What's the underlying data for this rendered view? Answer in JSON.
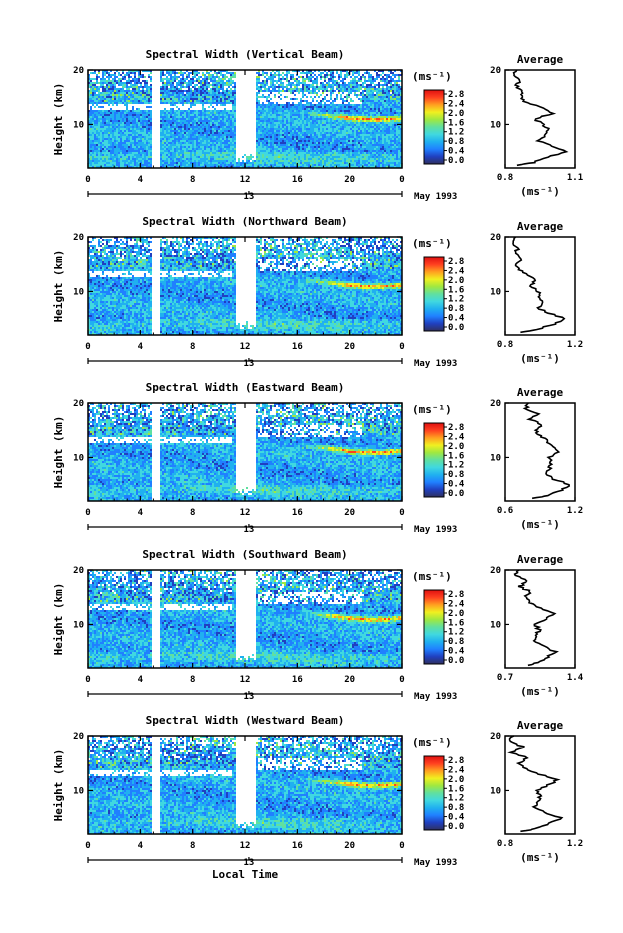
{
  "chart_data": [
    {
      "type": "heatmap",
      "title": "Spectral Width (Vertical Beam)",
      "xlabel": "",
      "ylabel": "Height (km)",
      "xlim": [
        0,
        24
      ],
      "ylim": [
        2,
        20
      ],
      "x_ticks": [
        "0",
        "4",
        "8",
        "12",
        "16",
        "20",
        "0"
      ],
      "y_ticks": [
        "10",
        "20"
      ],
      "date_label": "May 1993",
      "date_tick": "13",
      "colorbar": {
        "unit": "(ms⁻¹)",
        "ticks": [
          "0.0",
          "0.4",
          "0.8",
          "1.2",
          "1.6",
          "2.0",
          "2.4",
          "2.8"
        ]
      },
      "average_profile": {
        "title": "Average",
        "xlabel": "(ms⁻¹)",
        "x_ticks": [
          "0.8",
          "1.1"
        ],
        "xlim": [
          0.8,
          1.1
        ],
        "y_ticks": [
          "10",
          "20"
        ],
        "heights": [
          2.5,
          3,
          4,
          5,
          6,
          7,
          8,
          9,
          10,
          11,
          12,
          13,
          14,
          15,
          16,
          17,
          18,
          19,
          20
        ],
        "values": [
          0.86,
          0.92,
          0.98,
          1.06,
          1.0,
          0.94,
          0.97,
          0.99,
          0.96,
          0.93,
          1.0,
          0.97,
          0.89,
          0.87,
          0.88,
          0.85,
          0.86,
          0.84,
          0.85
        ]
      }
    },
    {
      "type": "heatmap",
      "title": "Spectral Width (Northward Beam)",
      "xlabel": "",
      "ylabel": "Height (km)",
      "xlim": [
        0,
        24
      ],
      "ylim": [
        2,
        20
      ],
      "x_ticks": [
        "0",
        "4",
        "8",
        "12",
        "16",
        "20",
        "0"
      ],
      "y_ticks": [
        "10",
        "20"
      ],
      "date_label": "May 1993",
      "date_tick": "13",
      "colorbar": {
        "unit": "(ms⁻¹)",
        "ticks": [
          "0.0",
          "0.4",
          "0.8",
          "1.2",
          "1.6",
          "2.0",
          "2.4",
          "2.8"
        ]
      },
      "average_profile": {
        "title": "Average",
        "xlabel": "(ms⁻¹)",
        "x_ticks": [
          "0.8",
          "1.2"
        ],
        "xlim": [
          0.8,
          1.2
        ],
        "y_ticks": [
          "10",
          "20"
        ],
        "heights": [
          2.5,
          3,
          4,
          5,
          6,
          7,
          8,
          9,
          10,
          11,
          12,
          13,
          14,
          15,
          16,
          17,
          18,
          19,
          20
        ],
        "values": [
          0.9,
          0.98,
          1.08,
          1.14,
          1.05,
          0.99,
          1.01,
          1.0,
          0.99,
          0.95,
          0.97,
          0.93,
          0.88,
          0.87,
          0.9,
          0.85,
          0.88,
          0.84,
          0.86
        ]
      }
    },
    {
      "type": "heatmap",
      "title": "Spectral Width (Eastward Beam)",
      "xlabel": "",
      "ylabel": "Height (km)",
      "xlim": [
        0,
        24
      ],
      "ylim": [
        2,
        20
      ],
      "x_ticks": [
        "0",
        "4",
        "8",
        "12",
        "16",
        "20",
        "0"
      ],
      "y_ticks": [
        "10",
        "20"
      ],
      "date_label": "May 1993",
      "date_tick": "13",
      "colorbar": {
        "unit": "(ms⁻¹)",
        "ticks": [
          "0.0",
          "0.4",
          "0.8",
          "1.2",
          "1.6",
          "2.0",
          "2.4",
          "2.8"
        ]
      },
      "average_profile": {
        "title": "Average",
        "xlabel": "(ms⁻¹)",
        "x_ticks": [
          "0.6",
          "1.2"
        ],
        "xlim": [
          0.6,
          1.2
        ],
        "y_ticks": [
          "10",
          "20"
        ],
        "heights": [
          2.5,
          3,
          4,
          5,
          6,
          7,
          8,
          9,
          10,
          11,
          12,
          13,
          14,
          15,
          16,
          17,
          18,
          19,
          20
        ],
        "values": [
          0.85,
          0.95,
          1.08,
          1.16,
          1.02,
          0.96,
          0.98,
          1.0,
          0.98,
          1.05,
          1.02,
          0.96,
          0.9,
          0.86,
          0.92,
          0.82,
          0.88,
          0.78,
          0.8
        ]
      }
    },
    {
      "type": "heatmap",
      "title": "Spectral Width (Southward Beam)",
      "xlabel": "",
      "ylabel": "Height (km)",
      "xlim": [
        0,
        24
      ],
      "ylim": [
        2,
        20
      ],
      "x_ticks": [
        "0",
        "4",
        "8",
        "12",
        "16",
        "20",
        "0"
      ],
      "y_ticks": [
        "10",
        "20"
      ],
      "date_label": "May 1993",
      "date_tick": "13",
      "colorbar": {
        "unit": "(ms⁻¹)",
        "ticks": [
          "0.0",
          "0.4",
          "0.8",
          "1.2",
          "1.6",
          "2.0",
          "2.4",
          "2.8"
        ]
      },
      "average_profile": {
        "title": "Average",
        "xlabel": "(ms⁻¹)",
        "x_ticks": [
          "0.7",
          "1.4"
        ],
        "xlim": [
          0.7,
          1.4
        ],
        "y_ticks": [
          "10",
          "20"
        ],
        "heights": [
          2.5,
          3,
          4,
          5,
          6,
          7,
          8,
          9,
          10,
          11,
          12,
          13,
          14,
          15,
          16,
          17,
          18,
          19,
          20
        ],
        "values": [
          0.95,
          1.03,
          1.12,
          1.2,
          1.08,
          1.0,
          1.02,
          1.04,
          1.0,
          1.12,
          1.18,
          1.05,
          0.95,
          0.9,
          0.95,
          0.85,
          0.92,
          0.8,
          0.84
        ]
      }
    },
    {
      "type": "heatmap",
      "title": "Spectral Width (Westward Beam)",
      "xlabel": "Local Time",
      "ylabel": "Height (km)",
      "xlim": [
        0,
        24
      ],
      "ylim": [
        2,
        20
      ],
      "x_ticks": [
        "0",
        "4",
        "8",
        "12",
        "16",
        "20",
        "0"
      ],
      "y_ticks": [
        "10",
        "20"
      ],
      "date_label": "May 1993",
      "date_tick": "13",
      "colorbar": {
        "unit": "(ms⁻¹)",
        "ticks": [
          "0.0",
          "0.4",
          "0.8",
          "1.2",
          "1.6",
          "2.0",
          "2.4",
          "2.8"
        ]
      },
      "average_profile": {
        "title": "Average",
        "xlabel": "(ms⁻¹)",
        "x_ticks": [
          "0.8",
          "1.2"
        ],
        "xlim": [
          0.8,
          1.2
        ],
        "y_ticks": [
          "10",
          "20"
        ],
        "heights": [
          2.5,
          3,
          4,
          5,
          6,
          7,
          8,
          9,
          10,
          11,
          12,
          13,
          14,
          15,
          16,
          17,
          18,
          19,
          20
        ],
        "values": [
          0.9,
          0.98,
          1.06,
          1.12,
          1.02,
          0.97,
          0.99,
          1.0,
          0.98,
          1.05,
          1.1,
          1.0,
          0.92,
          0.88,
          0.93,
          0.84,
          0.9,
          0.82,
          0.85
        ]
      }
    }
  ],
  "colors": {
    "colormap": [
      "#303060",
      "#2040c0",
      "#2080ff",
      "#20b0f0",
      "#40d8e0",
      "#60e0a0",
      "#a0e840",
      "#f0f020",
      "#ffa020",
      "#ff4020",
      "#e01010"
    ],
    "gap": "#ffffff",
    "line": "#000000"
  }
}
